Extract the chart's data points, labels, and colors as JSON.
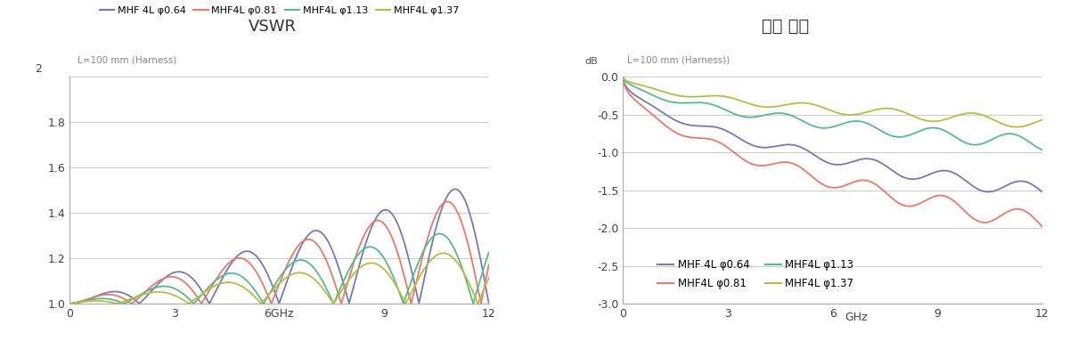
{
  "vswr_title": "VSWR",
  "il_title": "삽입 손실",
  "annotation_vswr": "L=100 mm (Harness)",
  "annotation_il": "L=100 mm (Harness))",
  "colors": {
    "blue": "#7777BB",
    "red": "#EE7766",
    "green": "#55BB88",
    "yellow": "#BBBB44"
  },
  "legend_labels": [
    "MHF 4L φ0.64",
    "MHF4L φ0.81",
    "MHF4L φ1.13",
    "MHF4L φ1.37"
  ],
  "vswr_ylim": [
    1.0,
    2.0
  ],
  "vswr_yticks": [
    1.0,
    1.2,
    1.4,
    1.6,
    1.8,
    2.0
  ],
  "vswr_xlim": [
    0,
    12
  ],
  "vswr_xticks": [
    0,
    3,
    6,
    9,
    12
  ],
  "il_ylim": [
    -3.0,
    0.0
  ],
  "il_yticks": [
    0.0,
    -0.5,
    -1.0,
    -1.5,
    -2.0,
    -2.5,
    -3.0
  ],
  "il_xlim": [
    0,
    12
  ],
  "il_xticks": [
    0,
    3,
    6,
    9,
    12
  ],
  "background_color": "#ffffff",
  "grid_color": "#cccccc"
}
